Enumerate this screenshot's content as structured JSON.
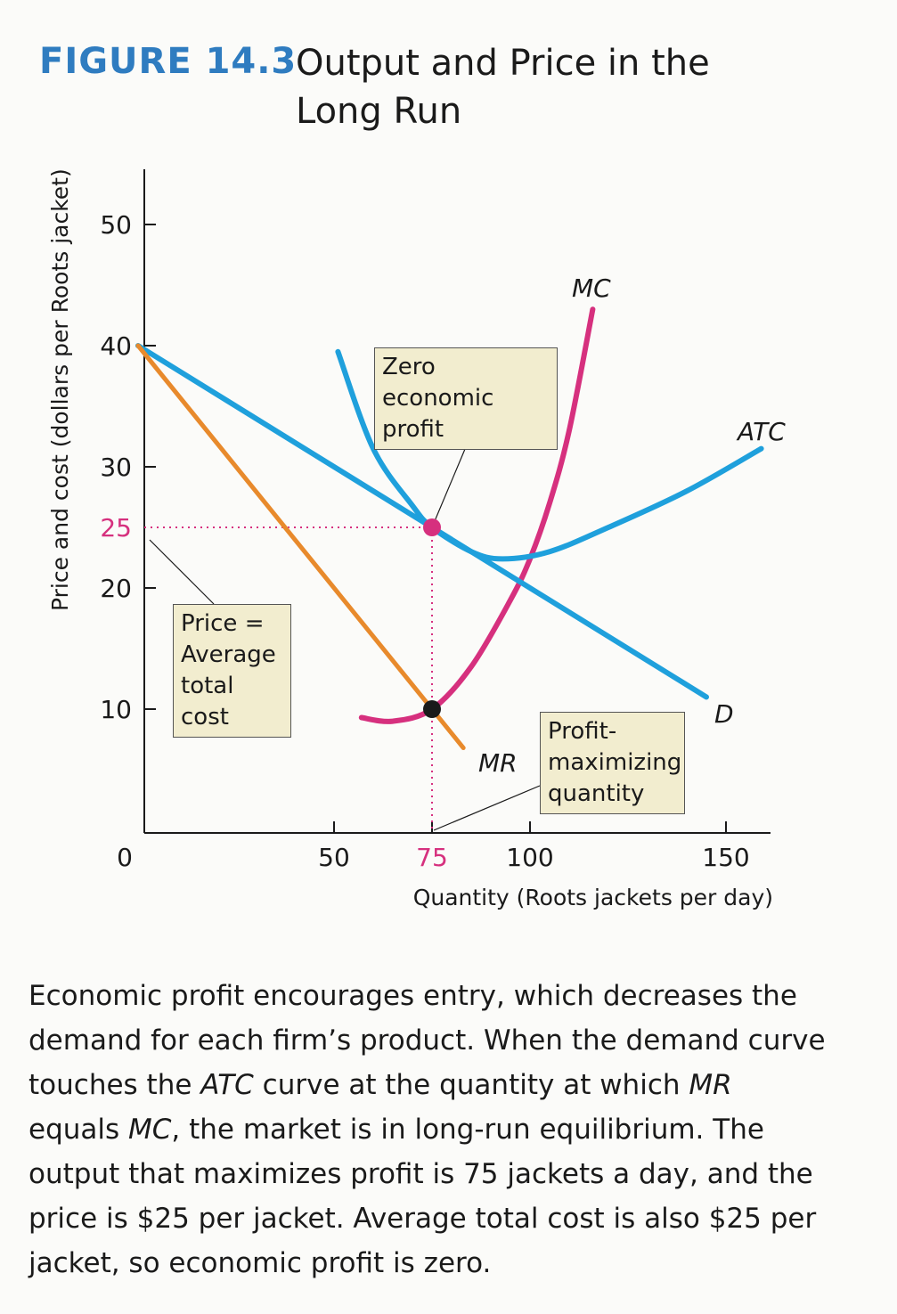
{
  "figure": {
    "label": "FIGURE 14.3",
    "title": "Output and Price in the Long Run"
  },
  "chart_data": {
    "type": "line",
    "xlabel": "Quantity (Roots jackets per day)",
    "ylabel": "Price and cost (dollars per Roots jacket)",
    "xlim": [
      0,
      160
    ],
    "ylim": [
      0,
      55
    ],
    "xticks": [
      "0",
      "50",
      "75",
      "100",
      "150"
    ],
    "yticks": [
      "10",
      "20",
      "25",
      "30",
      "40",
      "50"
    ],
    "series": [
      {
        "name": "MC",
        "color": "#d6307e",
        "points": [
          [
            57,
            9.3
          ],
          [
            65,
            9.0
          ],
          [
            75,
            10
          ],
          [
            85,
            13.5
          ],
          [
            95,
            19
          ],
          [
            100,
            22.4
          ],
          [
            105,
            27
          ],
          [
            110,
            33
          ],
          [
            116,
            43
          ]
        ]
      },
      {
        "name": "ATC",
        "color": "#1fa0dc",
        "points": [
          [
            51,
            39.5
          ],
          [
            60,
            31.5
          ],
          [
            70,
            26.8
          ],
          [
            75,
            25
          ],
          [
            85,
            23
          ],
          [
            93,
            22.4
          ],
          [
            105,
            23
          ],
          [
            120,
            25
          ],
          [
            140,
            28
          ],
          [
            159,
            31.5
          ]
        ]
      },
      {
        "name": "D",
        "color": "#1fa0dc",
        "points": [
          [
            0,
            40
          ],
          [
            145,
            11
          ]
        ]
      },
      {
        "name": "MR",
        "color": "#e88a2c",
        "points": [
          [
            0,
            40
          ],
          [
            83,
            6.8
          ]
        ]
      }
    ],
    "points": [
      {
        "x": 75,
        "y": 25,
        "color": "#d6307e"
      },
      {
        "x": 75,
        "y": 10,
        "color": "#1a1a1a"
      }
    ],
    "annotations": [
      "Zero economic profit",
      "Price = Average total cost",
      "Profit-maximizing quantity"
    ]
  },
  "caption": [
    {
      "t": "Economic profit encourages entry, which decreases the demand for each firm’s product. When the demand curve touches the "
    },
    {
      "t": "ATC",
      "i": true
    },
    {
      "t": " curve at the quantity at which "
    },
    {
      "t": "MR",
      "i": true
    },
    {
      "t": " equals "
    },
    {
      "t": "MC",
      "i": true
    },
    {
      "t": ", the market is in long-run equilibrium. The output that maximizes profit is 75 jackets a day, and the price is $25 per jacket. Average total cost is also $25 per jacket, so economic profit is zero."
    }
  ]
}
